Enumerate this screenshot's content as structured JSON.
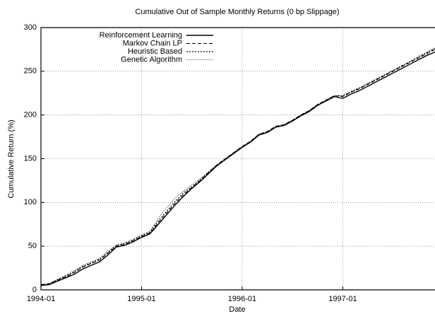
{
  "chart_data": {
    "type": "line",
    "title": "Cumulative Out of Sample Monthly Returns (0 bp Slippage)",
    "x_label": "Date",
    "y_label": "Cumulative Return (%)",
    "x": [
      "1994-01",
      "1994-02",
      "1994-03",
      "1994-04",
      "1994-05",
      "1994-06",
      "1994-07",
      "1994-08",
      "1994-09",
      "1994-10",
      "1994-11",
      "1994-12",
      "1995-01",
      "1995-02",
      "1995-03",
      "1995-04",
      "1995-05",
      "1995-06",
      "1995-07",
      "1995-08",
      "1995-09",
      "1995-10",
      "1995-11",
      "1995-12",
      "1996-01",
      "1996-02",
      "1996-03",
      "1996-04",
      "1996-05",
      "1996-06",
      "1996-07",
      "1996-08",
      "1996-09",
      "1996-10",
      "1996-11",
      "1996-12",
      "1997-01",
      "1997-02",
      "1997-03",
      "1997-04",
      "1997-05",
      "1997-06",
      "1997-07",
      "1997-08",
      "1997-09",
      "1997-10",
      "1997-11",
      "1997-12"
    ],
    "xlim": [
      "1994-01",
      "1997-12"
    ],
    "xticks": [
      "1994-01",
      "1995-01",
      "1996-01",
      "1997-01"
    ],
    "ylim": [
      0,
      300
    ],
    "yticks": [
      0,
      50,
      100,
      150,
      200,
      250,
      300
    ],
    "grid": true,
    "legend": "top-left",
    "series": [
      {
        "name": "Reinforcement Learning",
        "color": "#000000",
        "linestyle": "solid",
        "values": [
          5,
          6,
          10,
          14,
          18,
          24,
          28,
          32,
          40,
          49,
          51,
          55,
          60,
          64,
          75,
          86,
          97,
          107,
          116,
          124,
          133,
          142,
          149,
          156,
          163,
          169,
          177,
          180,
          186,
          188,
          193,
          199,
          204,
          211,
          216,
          221,
          219,
          224,
          228,
          233,
          238,
          243,
          248,
          253,
          258,
          263,
          268,
          272
        ]
      },
      {
        "name": "Markov Chain LP",
        "color": "#000000",
        "linestyle": "dashed",
        "values": [
          6,
          7,
          11,
          15,
          20,
          26,
          30,
          34,
          42,
          50,
          52,
          56,
          61,
          65,
          77,
          88,
          99,
          109,
          117,
          125,
          134,
          143,
          150,
          157,
          164,
          170,
          178,
          181,
          187,
          189,
          194,
          200,
          205,
          212,
          217,
          222,
          221,
          226,
          230,
          235,
          240,
          245,
          250,
          255,
          260,
          265,
          270,
          275
        ]
      },
      {
        "name": "Heuristic Based",
        "color": "#000000",
        "linestyle": "dotted",
        "values": [
          6,
          7,
          12,
          16,
          21,
          27,
          31,
          35,
          43,
          51,
          53,
          57,
          62,
          66,
          79,
          90,
          101,
          111,
          118,
          126,
          135,
          143,
          150,
          157,
          164,
          170,
          178,
          181,
          187,
          189,
          194,
          200,
          205,
          212,
          217,
          222,
          222,
          227,
          231,
          236,
          241,
          246,
          251,
          256,
          261,
          266,
          271,
          276
        ]
      },
      {
        "name": "Genetic Algorithm",
        "color": "#000000",
        "linestyle": "fine-dotted",
        "values": [
          5,
          7,
          12,
          17,
          22,
          28,
          32,
          36,
          45,
          51,
          54,
          58,
          63,
          67,
          82,
          94,
          105,
          113,
          120,
          127,
          135,
          143,
          150,
          157,
          163,
          170,
          178,
          180,
          186,
          189,
          194,
          200,
          205,
          212,
          217,
          222,
          222,
          226,
          231,
          236,
          241,
          246,
          251,
          256,
          261,
          267,
          272,
          277
        ]
      }
    ]
  }
}
